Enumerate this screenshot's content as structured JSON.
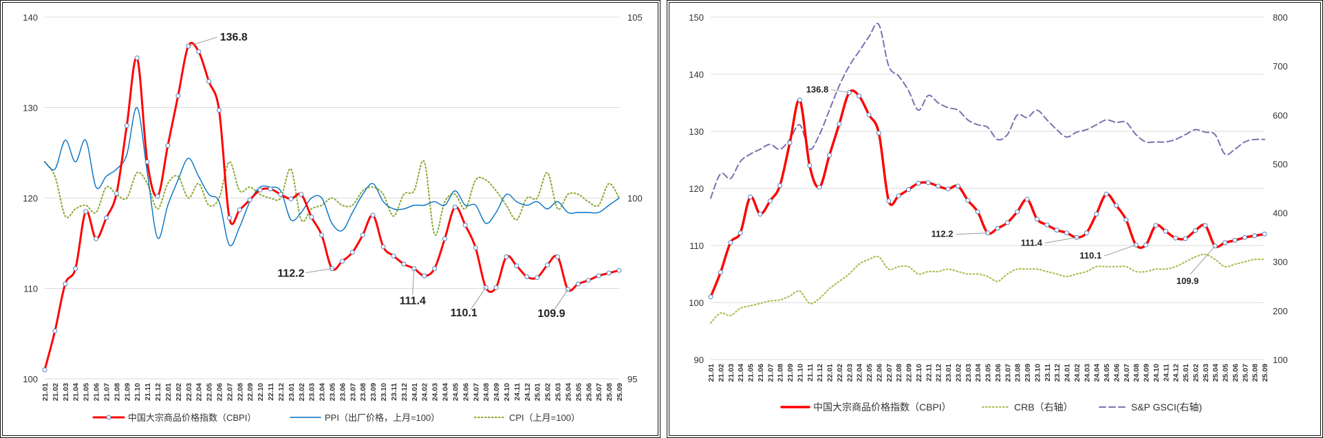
{
  "chart_data": [
    {
      "type": "line",
      "x_labels": [
        "21.01",
        "21.02",
        "21.03",
        "21.04",
        "21.05",
        "21.06",
        "21.07",
        "21.08",
        "21.09",
        "21.10",
        "21.11",
        "21.12",
        "22.01",
        "22.02",
        "22.03",
        "22.04",
        "22.05",
        "22.06",
        "22.07",
        "22.08",
        "22.09",
        "22.10",
        "22.11",
        "22.12",
        "23.01",
        "23.02",
        "23.03",
        "23.04",
        "23.05",
        "23.06",
        "23.07",
        "23.08",
        "23.09",
        "23.10",
        "23.11",
        "23.12",
        "24.01",
        "24.02",
        "24.03",
        "24.04",
        "24.05",
        "24.06",
        "24.07",
        "24.08",
        "24.09",
        "24.10",
        "24.11",
        "24.12",
        "25.01",
        "25.02",
        "25.03",
        "25.04",
        "25.05",
        "25.06",
        "25.07",
        "25.08",
        "25.09"
      ],
      "left_axis": {
        "min": 100,
        "max": 140,
        "ticks": [
          "100",
          "110",
          "120",
          "130",
          "140"
        ]
      },
      "right_axis": {
        "min": 95,
        "max": 105,
        "ticks": [
          "95",
          "100",
          "105"
        ]
      },
      "series": [
        {
          "name": "中国大宗商品价格指数（CBPI）",
          "axis": "left",
          "color": "#ff0000",
          "style": "solid-markers",
          "values": [
            101,
            105.3,
            110.5,
            112.2,
            118.5,
            115.5,
            117.8,
            120.5,
            128,
            135.5,
            124,
            120.2,
            125.8,
            131.3,
            136.8,
            136.2,
            132.9,
            129.7,
            117.8,
            118.7,
            119.8,
            120.9,
            121,
            120.4,
            119.9,
            120.4,
            117.9,
            115.9,
            112.2,
            113,
            114,
            115.9,
            118.1,
            114.6,
            113.6,
            112.7,
            112.2,
            111.4,
            112.2,
            115.5,
            119,
            117,
            114.5,
            110.1,
            110.1,
            113.5,
            112.5,
            111.3,
            111.2,
            112.6,
            113.5,
            109.9,
            110.5,
            110.9,
            111.4,
            111.7,
            112
          ]
        },
        {
          "name": "PPI（出厂价格，上月=100）",
          "axis": "right",
          "color": "#0070c0",
          "style": "solid",
          "values": [
            101,
            100.8,
            101.6,
            101,
            101.6,
            100.3,
            100.6,
            100.8,
            101.2,
            102.5,
            100.7,
            98.9,
            99.8,
            100.5,
            101.1,
            100.6,
            100.1,
            99.9,
            98.7,
            99.2,
            99.9,
            100.3,
            100.3,
            100.2,
            99.4,
            99.6,
            100,
            100,
            99.3,
            99.1,
            99.6,
            100.1,
            100.4,
            99.9,
            99.7,
            99.7,
            99.8,
            99.8,
            99.9,
            99.8,
            100.2,
            99.8,
            99.8,
            99.3,
            99.6,
            100.1,
            99.9,
            99.8,
            99.9,
            99.7,
            99.9,
            99.6,
            99.6,
            99.6,
            99.6,
            99.8,
            100
          ]
        },
        {
          "name": "CPI（上月=100）",
          "axis": "right",
          "color": "#8fad3a",
          "style": "dotted",
          "values": [
            101,
            100.6,
            99.5,
            99.7,
            99.8,
            99.6,
            100.3,
            100.1,
            100,
            100.7,
            100.4,
            99.7,
            100.4,
            100.6,
            100,
            100.4,
            99.8,
            100,
            101,
            100.2,
            100.3,
            100.1,
            100,
            100,
            100.8,
            99.4,
            99.7,
            99.8,
            100,
            99.8,
            99.8,
            100.2,
            100.3,
            100.1,
            99.5,
            100.1,
            100.2,
            101,
            99,
            99.9,
            100.1,
            99.7,
            100.5,
            100.5,
            100.2,
            99.8,
            99.4,
            100,
            100,
            100.7,
            99.7,
            100.1,
            100.1,
            99.9,
            99.8,
            100.4,
            100
          ]
        }
      ],
      "annotations": [
        "136.8",
        "112.2",
        "111.4",
        "110.1",
        "109.9"
      ],
      "legend": [
        "中国大宗商品价格指数（CBPI）",
        "PPI（出厂价格，上月=100）",
        "CPI（上月=100）"
      ]
    },
    {
      "type": "line",
      "x_labels": [
        "21.01",
        "21.02",
        "21.03",
        "21.04",
        "21.05",
        "21.06",
        "21.07",
        "21.08",
        "21.09",
        "21.10",
        "21.11",
        "21.12",
        "22.01",
        "22.02",
        "22.03",
        "22.04",
        "22.05",
        "22.06",
        "22.07",
        "22.08",
        "22.09",
        "22.10",
        "22.11",
        "22.12",
        "23.01",
        "23.02",
        "23.03",
        "23.04",
        "23.05",
        "23.06",
        "23.07",
        "23.08",
        "23.09",
        "23.10",
        "23.11",
        "23.12",
        "24.01",
        "24.02",
        "24.03",
        "24.04",
        "24.05",
        "24.06",
        "24.07",
        "24.08",
        "24.09",
        "24.10",
        "24.11",
        "24.12",
        "25.01",
        "25.02",
        "25.03",
        "25.04",
        "25.05",
        "25.06",
        "25.07",
        "25.08",
        "25.09"
      ],
      "left_axis": {
        "min": 90,
        "max": 150,
        "ticks": [
          "90",
          "100",
          "110",
          "120",
          "130",
          "140",
          "150"
        ]
      },
      "right_axis": {
        "min": 100,
        "max": 800,
        "ticks": [
          "100",
          "200",
          "300",
          "400",
          "500",
          "600",
          "700",
          "800"
        ]
      },
      "series": [
        {
          "name": "中国大宗商品价格指数（CBPI）",
          "axis": "left",
          "color": "#ff0000",
          "style": "solid-markers",
          "values": [
            101,
            105.3,
            110.5,
            112.2,
            118.5,
            115.5,
            117.8,
            120.5,
            128,
            135.5,
            124,
            120.2,
            125.8,
            131.3,
            136.8,
            136.2,
            132.9,
            129.7,
            117.8,
            118.7,
            119.8,
            120.9,
            121,
            120.4,
            119.9,
            120.4,
            117.9,
            115.9,
            112.2,
            113,
            114,
            115.9,
            118.1,
            114.6,
            113.6,
            112.7,
            112.2,
            111.4,
            112.2,
            115.5,
            119,
            117,
            114.5,
            110.1,
            110.1,
            113.5,
            112.5,
            111.3,
            111.2,
            112.6,
            113.5,
            109.9,
            110.5,
            110.9,
            111.4,
            111.7,
            112
          ]
        },
        {
          "name": "CRB（右轴）",
          "axis": "right",
          "color": "#a9bf54",
          "style": "dotted",
          "values": [
            175,
            195,
            190,
            205,
            210,
            215,
            220,
            222,
            230,
            240,
            215,
            225,
            245,
            260,
            275,
            295,
            305,
            310,
            285,
            290,
            290,
            275,
            280,
            280,
            285,
            280,
            275,
            275,
            270,
            260,
            275,
            285,
            285,
            285,
            280,
            275,
            270,
            275,
            280,
            290,
            290,
            290,
            290,
            280,
            280,
            285,
            285,
            290,
            300,
            310,
            315,
            305,
            290,
            295,
            300,
            305,
            305
          ]
        },
        {
          "name": "S&P GSCI(右轴)",
          "axis": "right",
          "color": "#7b6fb0",
          "style": "dashed",
          "values": [
            430,
            480,
            470,
            505,
            520,
            530,
            540,
            530,
            550,
            580,
            530,
            560,
            610,
            660,
            700,
            730,
            760,
            785,
            700,
            680,
            650,
            610,
            640,
            625,
            615,
            610,
            590,
            580,
            575,
            550,
            560,
            600,
            595,
            610,
            590,
            570,
            555,
            565,
            570,
            580,
            590,
            585,
            585,
            560,
            545,
            545,
            545,
            550,
            560,
            570,
            565,
            560,
            520,
            530,
            545,
            550,
            550
          ]
        }
      ],
      "annotations": [
        "136.8",
        "112.2",
        "111.4",
        "110.1",
        "109.9"
      ],
      "legend": [
        "中国大宗商品价格指数（CBPI）",
        "CRB（右轴）",
        "S&P GSCI(右轴)"
      ]
    }
  ]
}
